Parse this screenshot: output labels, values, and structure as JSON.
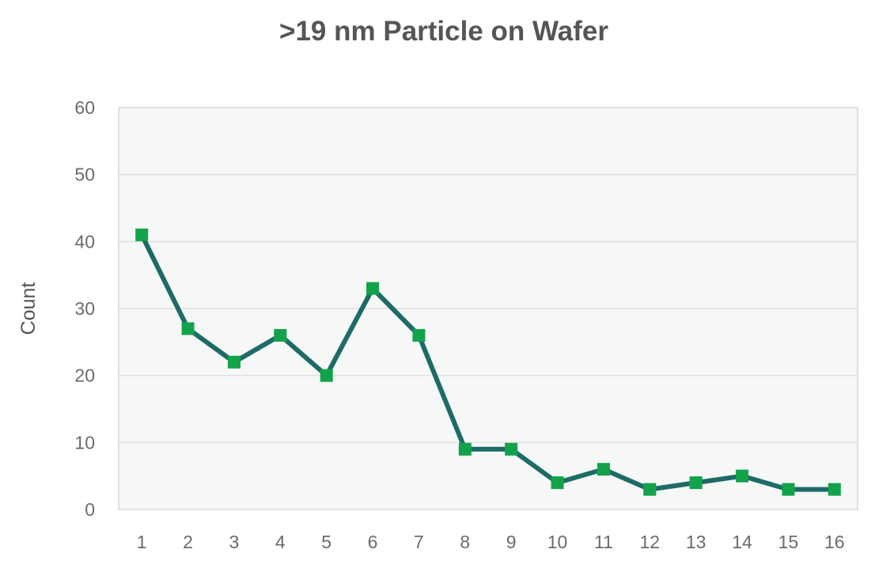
{
  "chart_data": {
    "type": "line",
    "title": ">19 nm Particle on Wafer",
    "xlabel": "",
    "ylabel": "Count",
    "categories": [
      "1",
      "2",
      "3",
      "4",
      "5",
      "6",
      "7",
      "8",
      "9",
      "10",
      "11",
      "12",
      "13",
      "14",
      "15",
      "16"
    ],
    "series": [
      {
        "values": [
          41,
          27,
          22,
          26,
          20,
          33,
          26,
          9,
          9,
          4,
          6,
          3,
          4,
          5,
          3,
          3
        ]
      }
    ],
    "ylim": [
      0,
      60
    ],
    "yticks": [
      "0",
      "10",
      "20",
      "30",
      "40",
      "50",
      "60"
    ],
    "grid": true,
    "legend": "none",
    "colors": {
      "line": "#1d6b67",
      "marker": "#12a24a",
      "plot_bg": "#f6f7f7",
      "grid": "#e0e0e0",
      "frame": "#d9d9d9"
    }
  }
}
